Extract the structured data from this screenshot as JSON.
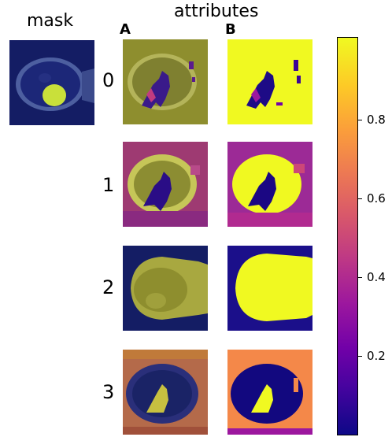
{
  "titles": {
    "mask": "mask",
    "attributes": "attributes"
  },
  "columns": {
    "a": "A",
    "b": "B"
  },
  "rows": [
    "0",
    "1",
    "2",
    "3"
  ],
  "colorbar": {
    "colormap": "plasma",
    "ticks": [
      "0.2",
      "0.4",
      "0.6",
      "0.8"
    ],
    "tick_values": [
      0.2,
      0.4,
      0.6,
      0.8
    ],
    "range": [
      0.0,
      1.0
    ]
  },
  "colors": {
    "dark_blue": "#0d0887",
    "purple": "#6a00a8",
    "magenta": "#b12a90",
    "orange": "#f48849",
    "yellow": "#f0f921",
    "olive_overlay": "#8e8e2e"
  }
}
